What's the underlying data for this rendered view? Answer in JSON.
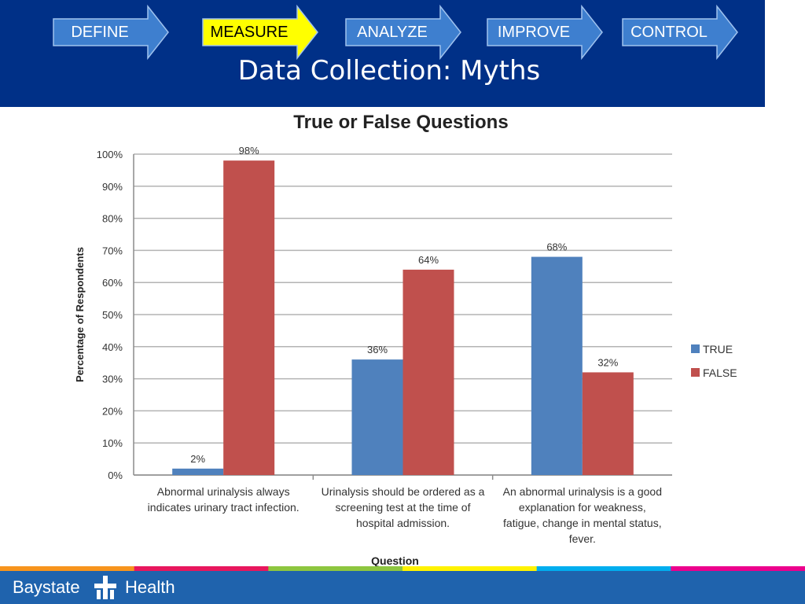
{
  "header": {
    "steps": [
      {
        "label": "DEFINE",
        "active": false
      },
      {
        "label": "MEASURE",
        "active": true
      },
      {
        "label": "ANALYZE",
        "active": false
      },
      {
        "label": "IMPROVE",
        "active": false
      },
      {
        "label": "CONTROL",
        "active": false
      }
    ],
    "title": "Data Collection: Myths"
  },
  "colors": {
    "header_bg": "#003087",
    "step_fill": "#3e7fcf",
    "step_active_fill": "#ffff00",
    "true_series": "#4f81bd",
    "false_series": "#c0504d"
  },
  "chart_data": {
    "type": "bar",
    "title": "True or False Questions",
    "xlabel": "Question",
    "ylabel": "Percentage of Respondents",
    "ylim": [
      0,
      100
    ],
    "yticks": [
      "0%",
      "10%",
      "20%",
      "30%",
      "40%",
      "50%",
      "60%",
      "70%",
      "80%",
      "90%",
      "100%"
    ],
    "grid": true,
    "legend_position": "right",
    "categories": [
      [
        "Abnormal urinalysis always",
        "indicates urinary tract infection."
      ],
      [
        "Urinalysis should be ordered as a",
        "screening test at the time of",
        "hospital admission."
      ],
      [
        "An abnormal urinalysis is a good",
        "explanation for weakness,",
        "fatigue, change in mental status,",
        "fever."
      ]
    ],
    "series": [
      {
        "name": "TRUE",
        "values": [
          2,
          36,
          68
        ],
        "labels": [
          "2%",
          "36%",
          "68%"
        ]
      },
      {
        "name": "FALSE",
        "values": [
          98,
          64,
          32
        ],
        "labels": [
          "98%",
          "64%",
          "32%"
        ]
      }
    ]
  },
  "footer": {
    "brand_left": "Baystate",
    "brand_right": "Health",
    "strip_colors": [
      "#f7941d",
      "#e8175d",
      "#8dc63f",
      "#fff200",
      "#00aeef",
      "#ec008c"
    ]
  }
}
